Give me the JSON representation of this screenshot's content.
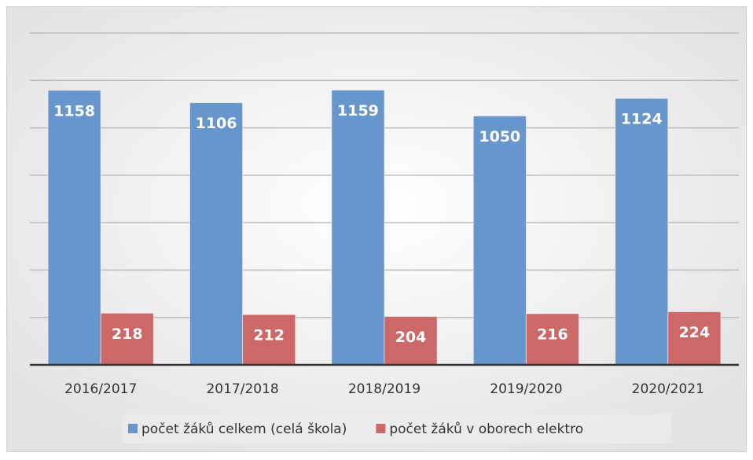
{
  "chart_data": {
    "type": "bar",
    "categories": [
      "2016/2017",
      "2017/2018",
      "2018/2019",
      "2019/2020",
      "2020/2021"
    ],
    "series": [
      {
        "name": "počet žáků celkem (celá škola)",
        "color": "#6796cc",
        "values": [
          1158,
          1106,
          1159,
          1050,
          1124
        ]
      },
      {
        "name": "počet žáků v oborech elektro",
        "color": "#cc6868",
        "values": [
          218,
          212,
          204,
          216,
          224
        ]
      }
    ],
    "ylim": [
      0,
      1400
    ],
    "yticks": [
      0,
      200,
      400,
      600,
      800,
      1000,
      1200,
      1400
    ],
    "grid": true,
    "legend": "bottom"
  }
}
